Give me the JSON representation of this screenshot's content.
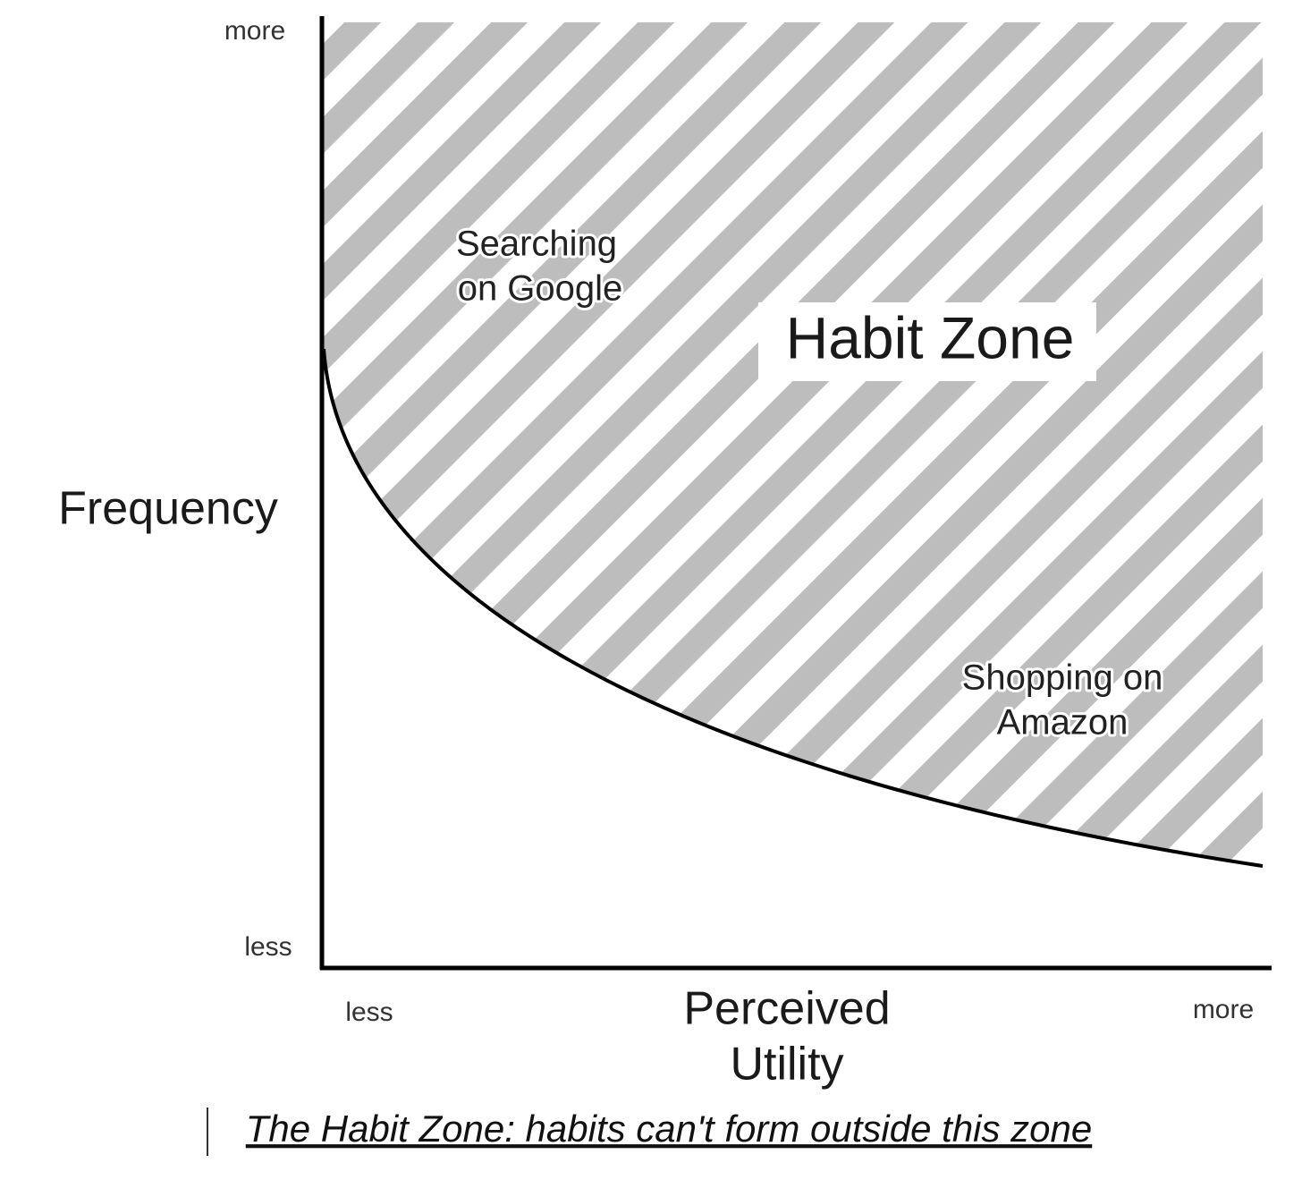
{
  "y_axis": {
    "label": "Frequency",
    "top": "more",
    "bottom": "less"
  },
  "x_axis": {
    "label_lines": [
      "Perceived",
      "Utility"
    ],
    "left": "less",
    "right": "more"
  },
  "zone": {
    "label": "Habit Zone",
    "examples": [
      {
        "lines": [
          "Searching",
          "on Google"
        ]
      },
      {
        "lines": [
          "Shopping on",
          "Amazon"
        ]
      }
    ]
  },
  "caption": "The Habit Zone: habits can't form outside this zone"
}
